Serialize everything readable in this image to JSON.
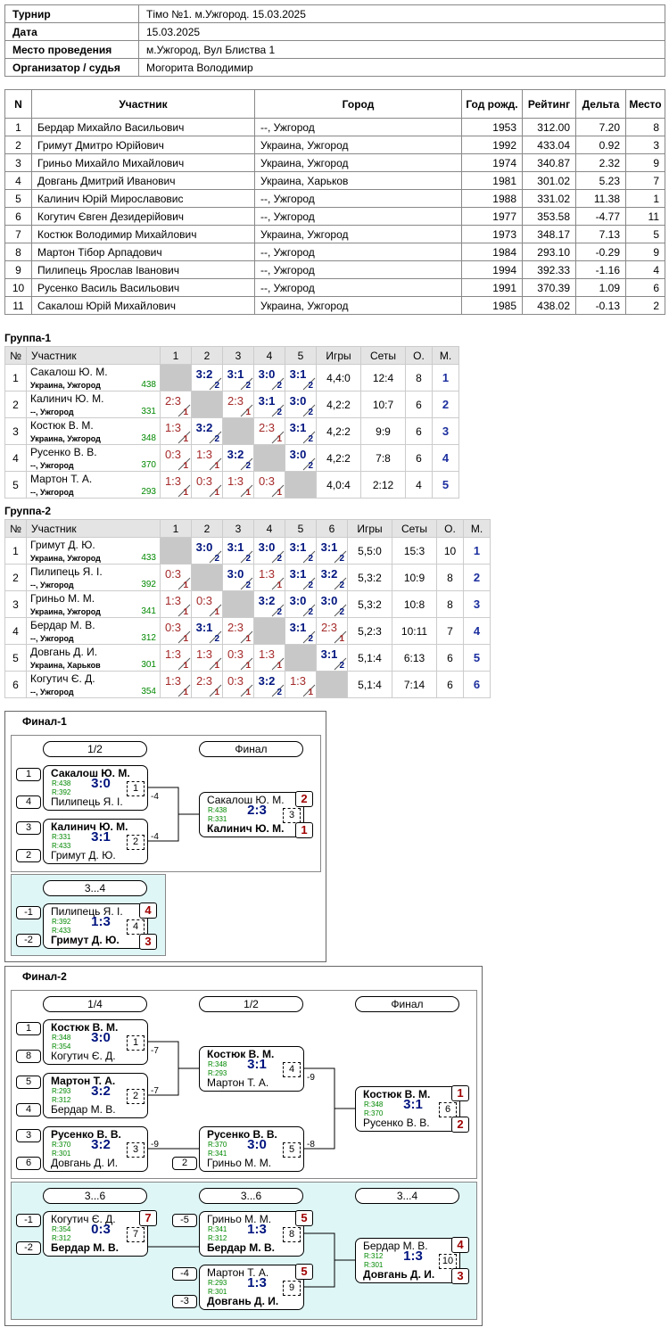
{
  "info": {
    "rows": [
      [
        "Турнир",
        "Тімо №1. м.Ужгород. 15.03.2025"
      ],
      [
        "Дата",
        "15.03.2025"
      ],
      [
        "Место проведения",
        "м.Ужгород, Вул Блиства 1"
      ],
      [
        "Организатор / судья",
        "Могорита Володимир"
      ]
    ]
  },
  "participants": {
    "header": [
      "N",
      "Участник",
      "Город",
      "Год рожд.",
      "Рейтинг",
      "Дельта",
      "Место"
    ],
    "rows": [
      [
        "1",
        "Бердар Михайло Васильович",
        "--, Ужгород",
        "1953",
        "312.00",
        "7.20",
        "8"
      ],
      [
        "2",
        "Гримут Дмитро Юрійович",
        "Украина, Ужгород",
        "1992",
        "433.04",
        "0.92",
        "3"
      ],
      [
        "3",
        "Гриньо Михайло Михайлович",
        "Украина, Ужгород",
        "1974",
        "340.87",
        "2.32",
        "9"
      ],
      [
        "4",
        "Довгань Дмитрий Иванович",
        "Украина, Харьков",
        "1981",
        "301.02",
        "5.23",
        "7"
      ],
      [
        "5",
        "Калинич Юрій Мирославовис",
        "--, Ужгород",
        "1988",
        "331.02",
        "11.38",
        "1"
      ],
      [
        "6",
        "Когутич Євген Дезидерійович",
        "--, Ужгород",
        "1977",
        "353.58",
        "-4.77",
        "11"
      ],
      [
        "7",
        "Костюк Володимир Михайлович",
        "Украина, Ужгород",
        "1973",
        "348.17",
        "7.13",
        "5"
      ],
      [
        "8",
        "Мартон Тібор Арпадович",
        "--, Ужгород",
        "1984",
        "293.10",
        "-0.29",
        "9"
      ],
      [
        "9",
        "Пилипець Ярослав Іванович",
        "--, Ужгород",
        "1994",
        "392.33",
        "-1.16",
        "4"
      ],
      [
        "10",
        "Русенко Василь Васильович",
        "--, Ужгород",
        "1991",
        "370.39",
        "1.09",
        "6"
      ],
      [
        "11",
        "Сакалош Юрій Михайлович",
        "Украина, Ужгород",
        "1985",
        "438.02",
        "-0.13",
        "2"
      ]
    ]
  },
  "groups": [
    {
      "title": "Группа-1",
      "header": [
        "№",
        "Участник",
        "1",
        "2",
        "3",
        "4",
        "5",
        "Игры",
        "Сеты",
        "О.",
        "М."
      ],
      "rows": [
        {
          "n": "1",
          "name": "Сакалош Ю. М.",
          "city": "Украина, Ужгород",
          "rating": "438",
          "cells": [
            null,
            {
              "score": "3:2",
              "pts": "2"
            },
            {
              "score": "3:1",
              "pts": "2"
            },
            {
              "score": "3:0",
              "pts": "2"
            },
            {
              "score": "3:1",
              "pts": "2"
            }
          ],
          "games": "4,4:0",
          "sets": "12:4",
          "points": "8",
          "place": "1"
        },
        {
          "n": "2",
          "name": "Калинич Ю. М.",
          "city": "--, Ужгород",
          "rating": "331",
          "cells": [
            {
              "score": "2:3",
              "pts": "1"
            },
            null,
            {
              "score": "2:3",
              "pts": "1"
            },
            {
              "score": "3:1",
              "pts": "2"
            },
            {
              "score": "3:0",
              "pts": "2"
            }
          ],
          "games": "4,2:2",
          "sets": "10:7",
          "points": "6",
          "place": "2"
        },
        {
          "n": "3",
          "name": "Костюк В. М.",
          "city": "Украина, Ужгород",
          "rating": "348",
          "cells": [
            {
              "score": "1:3",
              "pts": "1"
            },
            {
              "score": "3:2",
              "pts": "2"
            },
            null,
            {
              "score": "2:3",
              "pts": "1"
            },
            {
              "score": "3:1",
              "pts": "2"
            }
          ],
          "games": "4,2:2",
          "sets": "9:9",
          "points": "6",
          "place": "3"
        },
        {
          "n": "4",
          "name": "Русенко В. В.",
          "city": "--, Ужгород",
          "rating": "370",
          "cells": [
            {
              "score": "0:3",
              "pts": "1"
            },
            {
              "score": "1:3",
              "pts": "1"
            },
            {
              "score": "3:2",
              "pts": "2"
            },
            null,
            {
              "score": "3:0",
              "pts": "2"
            }
          ],
          "games": "4,2:2",
          "sets": "7:8",
          "points": "6",
          "place": "4"
        },
        {
          "n": "5",
          "name": "Мартон Т. А.",
          "city": "--, Ужгород",
          "rating": "293",
          "cells": [
            {
              "score": "1:3",
              "pts": "1"
            },
            {
              "score": "0:3",
              "pts": "1"
            },
            {
              "score": "1:3",
              "pts": "1"
            },
            {
              "score": "0:3",
              "pts": "1"
            },
            null
          ],
          "games": "4,0:4",
          "sets": "2:12",
          "points": "4",
          "place": "5"
        }
      ]
    },
    {
      "title": "Группа-2",
      "header": [
        "№",
        "Участник",
        "1",
        "2",
        "3",
        "4",
        "5",
        "6",
        "Игры",
        "Сеты",
        "О.",
        "М."
      ],
      "rows": [
        {
          "n": "1",
          "name": "Гримут Д. Ю.",
          "city": "Украина, Ужгород",
          "rating": "433",
          "cells": [
            null,
            {
              "score": "3:0",
              "pts": "2"
            },
            {
              "score": "3:1",
              "pts": "2"
            },
            {
              "score": "3:0",
              "pts": "2"
            },
            {
              "score": "3:1",
              "pts": "2"
            },
            {
              "score": "3:1",
              "pts": "2"
            }
          ],
          "games": "5,5:0",
          "sets": "15:3",
          "points": "10",
          "place": "1"
        },
        {
          "n": "2",
          "name": "Пилипець Я. І.",
          "city": "--, Ужгород",
          "rating": "392",
          "cells": [
            {
              "score": "0:3",
              "pts": "1"
            },
            null,
            {
              "score": "3:0",
              "pts": "2"
            },
            {
              "score": "1:3",
              "pts": "1"
            },
            {
              "score": "3:1",
              "pts": "2"
            },
            {
              "score": "3:2",
              "pts": "2"
            }
          ],
          "games": "5,3:2",
          "sets": "10:9",
          "points": "8",
          "place": "2"
        },
        {
          "n": "3",
          "name": "Гриньо М. М.",
          "city": "Украина, Ужгород",
          "rating": "341",
          "cells": [
            {
              "score": "1:3",
              "pts": "1"
            },
            {
              "score": "0:3",
              "pts": "1"
            },
            null,
            {
              "score": "3:2",
              "pts": "2"
            },
            {
              "score": "3:0",
              "pts": "2"
            },
            {
              "score": "3:0",
              "pts": "2"
            }
          ],
          "games": "5,3:2",
          "sets": "10:8",
          "points": "8",
          "place": "3"
        },
        {
          "n": "4",
          "name": "Бердар М. В.",
          "city": "--, Ужгород",
          "rating": "312",
          "cells": [
            {
              "score": "0:3",
              "pts": "1"
            },
            {
              "score": "3:1",
              "pts": "2"
            },
            {
              "score": "2:3",
              "pts": "1"
            },
            null,
            {
              "score": "3:1",
              "pts": "2"
            },
            {
              "score": "2:3",
              "pts": "1"
            }
          ],
          "games": "5,2:3",
          "sets": "10:11",
          "points": "7",
          "place": "4"
        },
        {
          "n": "5",
          "name": "Довгань Д. И.",
          "city": "Украина, Харьков",
          "rating": "301",
          "cells": [
            {
              "score": "1:3",
              "pts": "1"
            },
            {
              "score": "1:3",
              "pts": "1"
            },
            {
              "score": "0:3",
              "pts": "1"
            },
            {
              "score": "1:3",
              "pts": "1"
            },
            null,
            {
              "score": "3:1",
              "pts": "2"
            }
          ],
          "games": "5,1:4",
          "sets": "6:13",
          "points": "6",
          "place": "5"
        },
        {
          "n": "6",
          "name": "Когутич Є. Д.",
          "city": "--, Ужгород",
          "rating": "354",
          "cells": [
            {
              "score": "1:3",
              "pts": "1"
            },
            {
              "score": "2:3",
              "pts": "1"
            },
            {
              "score": "0:3",
              "pts": "1"
            },
            {
              "score": "3:2",
              "pts": "2"
            },
            {
              "score": "1:3",
              "pts": "1"
            },
            null
          ],
          "games": "5,1:4",
          "sets": "7:14",
          "points": "6",
          "place": "6"
        }
      ]
    }
  ],
  "finals": [
    {
      "title": "Финал-1",
      "sections": [
        {
          "rounds": [
            "1/2",
            "Финал"
          ],
          "matches": [
            {
              "top": {
                "seed": "1",
                "name": "Сакалош Ю. М.",
                "rating": "R:438"
              },
              "bottom": {
                "seed": "4",
                "name": "Пилипець Я. І.",
                "rating": "R:392"
              },
              "score": "3:0",
              "number": "1",
              "next": "-4"
            },
            {
              "top": {
                "seed": "3",
                "name": "Калинич Ю. М.",
                "rating": "R:331"
              },
              "bottom": {
                "seed": "2",
                "name": "Гримут Д. Ю.",
                "rating": "R:433"
              },
              "score": "3:1",
              "number": "2",
              "next": "-4"
            },
            {
              "top": {
                "name": "Сакалош Ю. М.",
                "rating": "R:438"
              },
              "bottom": {
                "name": "Калинич Ю. М.",
                "rating": "R:331"
              },
              "score": "2:3",
              "number": "3",
              "places": [
                "2",
                "1"
              ]
            }
          ]
        },
        {
          "rounds": [
            "3...4"
          ],
          "matches": [
            {
              "top": {
                "seed": "-1",
                "name": "Пилипець Я. І.",
                "rating": "R:392"
              },
              "bottom": {
                "seed": "-2",
                "name": "Гримут Д. Ю.",
                "rating": "R:433"
              },
              "score": "1:3",
              "number": "4",
              "places": [
                "4",
                "3"
              ]
            }
          ]
        }
      ]
    },
    {
      "title": "Финал-2",
      "sections": [
        {
          "rounds": [
            "1/4",
            "1/2",
            "Финал"
          ],
          "matches": [
            {
              "top": {
                "seed": "1",
                "name": "Костюк В. М.",
                "rating": "R:348"
              },
              "bottom": {
                "seed": "8",
                "name": "Когутич Є. Д.",
                "rating": "R:354"
              },
              "score": "3:0",
              "number": "1",
              "next": "-7"
            },
            {
              "top": {
                "seed": "5",
                "name": "Мартон Т. А.",
                "rating": "R:293"
              },
              "bottom": {
                "seed": "4",
                "name": "Бердар М. В.",
                "rating": "R:312"
              },
              "score": "3:2",
              "number": "2",
              "next": "-7"
            },
            {
              "top": {
                "seed": "3",
                "name": "Русенко В. В.",
                "rating": "R:370"
              },
              "bottom": {
                "seed": "6",
                "name": "Довгань Д. И.",
                "rating": "R:301"
              },
              "score": "3:2",
              "number": "3",
              "next": "-9"
            },
            {
              "top": {
                "name": "Костюк В. М.",
                "rating": "R:348"
              },
              "bottom": {
                "name": "Мартон Т. А.",
                "rating": "R:293"
              },
              "score": "3:1",
              "number": "4",
              "next": "-9"
            },
            {
              "top": {
                "name": "Русенко В. В.",
                "rating": "R:370"
              },
              "bottom": {
                "seed": "2",
                "name": "Гриньо М. М.",
                "rating": "R:341"
              },
              "score": "3:0",
              "number": "5",
              "next": "-8"
            },
            {
              "top": {
                "name": "Костюк В. М.",
                "rating": "R:348"
              },
              "bottom": {
                "name": "Русенко В. В.",
                "rating": "R:370"
              },
              "score": "3:1",
              "number": "6",
              "places": [
                "1",
                "2"
              ]
            }
          ]
        },
        {
          "rounds": [
            "3...6",
            "3...6",
            "3...4"
          ],
          "matches": [
            {
              "top": {
                "seed": "-1",
                "name": "Когутич Є. Д.",
                "rating": "R:354"
              },
              "bottom": {
                "seed": "-2",
                "name": "Бердар М. В.",
                "rating": "R:312"
              },
              "score": "0:3",
              "number": "7",
              "places": [
                "7",
                null
              ]
            },
            {
              "top": {
                "seed": "-5",
                "name": "Гриньо М. М.",
                "rating": "R:341"
              },
              "bottom": {
                "name": "Бердар М. В.",
                "rating": "R:312"
              },
              "score": "1:3",
              "number": "8",
              "places": [
                "5",
                null
              ]
            },
            {
              "top": {
                "seed": "-4",
                "name": "Мартон Т. А.",
                "rating": "R:293"
              },
              "bottom": {
                "seed": "-3",
                "name": "Довгань Д. И.",
                "rating": "R:301"
              },
              "score": "1:3",
              "number": "9",
              "places": [
                "5",
                null
              ]
            },
            {
              "top": {
                "name": "Бердар М. В.",
                "rating": "R:312"
              },
              "bottom": {
                "name": "Довгань Д. И.",
                "rating": "R:301"
              },
              "score": "1:3",
              "number": "10",
              "places": [
                "4",
                "3"
              ]
            }
          ]
        }
      ]
    }
  ]
}
